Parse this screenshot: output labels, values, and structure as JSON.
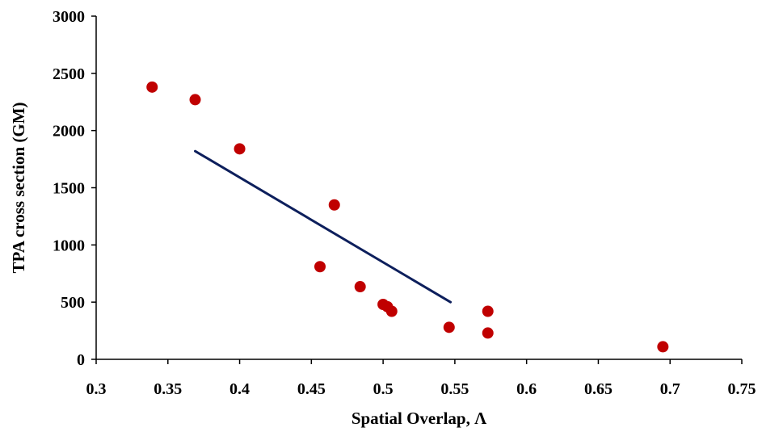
{
  "chart_data": {
    "type": "scatter",
    "title": "",
    "xlabel": "Spatial Overlap, Λ",
    "ylabel": "TPA cross section (GM)",
    "xlim": [
      0.3,
      0.75
    ],
    "ylim": [
      0,
      3000
    ],
    "x_ticks": [
      0.3,
      0.35,
      0.4,
      0.45,
      0.5,
      0.55,
      0.6,
      0.65,
      0.7,
      0.75
    ],
    "x_tick_labels": [
      "0.3",
      "0.35",
      "0.4",
      "0.45",
      "0.5",
      "0.55",
      "0.6",
      "0.65",
      "0.7",
      "0.75"
    ],
    "y_ticks": [
      0,
      500,
      1000,
      1500,
      2000,
      2500,
      3000
    ],
    "y_tick_labels": [
      "0",
      "500",
      "1000",
      "1500",
      "2000",
      "2500",
      "3000"
    ],
    "grid": false,
    "legend": "none",
    "series": [
      {
        "kind": "points",
        "color": "#c00000",
        "points": [
          {
            "x": 0.339,
            "y": 2380
          },
          {
            "x": 0.369,
            "y": 2270
          },
          {
            "x": 0.4,
            "y": 1840
          },
          {
            "x": 0.466,
            "y": 1350
          },
          {
            "x": 0.456,
            "y": 810
          },
          {
            "x": 0.484,
            "y": 635
          },
          {
            "x": 0.5,
            "y": 480
          },
          {
            "x": 0.503,
            "y": 460
          },
          {
            "x": 0.506,
            "y": 420
          },
          {
            "x": 0.546,
            "y": 280
          },
          {
            "x": 0.573,
            "y": 420
          },
          {
            "x": 0.573,
            "y": 230
          },
          {
            "x": 0.695,
            "y": 110
          }
        ]
      },
      {
        "kind": "trendline",
        "color": "#0d1f5c",
        "points": [
          {
            "x": 0.369,
            "y": 1820
          },
          {
            "x": 0.547,
            "y": 500
          }
        ]
      }
    ]
  }
}
